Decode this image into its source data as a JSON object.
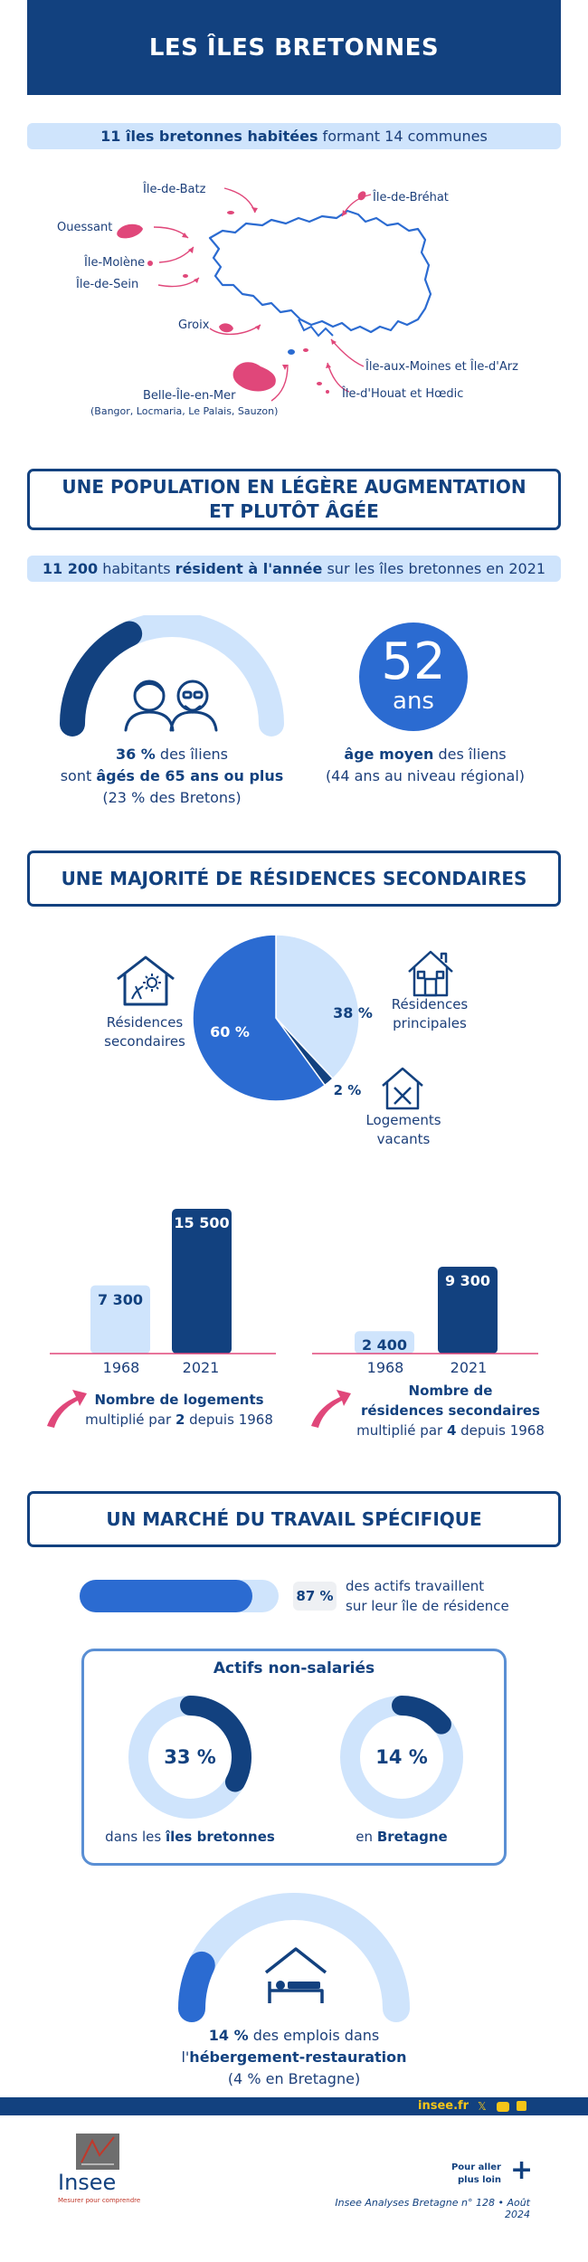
{
  "header": {
    "title": "LES ÎLES BRETONNES"
  },
  "intro": {
    "bold": "11 îles bretonnes habitées",
    "rest": " formant 14 communes"
  },
  "map": {
    "labels": {
      "batz": "Île-de-Batz",
      "brehat": "Île-de-Bréhat",
      "ouessant": "Ouessant",
      "molene": "Île-Molène",
      "sein": "Île-de-Sein",
      "groix": "Groix",
      "moines_arz": "Île-aux-Moines et Île-d'Arz",
      "houat_hoedic": "Île-d'Houat et Hœdic",
      "belle_ile": "Belle-Île-en-Mer",
      "belle_ile_sub": "(Bangor, Locmaria, Le Palais, Sauzon)"
    },
    "island_color": "#e0477a",
    "coast_color": "#2b6bd1"
  },
  "population": {
    "title_line1": "UNE POPULATION EN LÉGÈRE AUGMENTATION",
    "title_line2": "ET PLUTÔT ÂGÉE",
    "pill_bold1": "11 200",
    "pill_text1": " habitants ",
    "pill_bold2": "résident à l'année",
    "pill_text2": " sur les îles bretonnes en 2021",
    "seniors": {
      "share_pct": 36,
      "line1_bold": "36 %",
      "line1_rest": " des îliens",
      "line2_pre": "sont ",
      "line2_bold": "âgés de 65 ans ou plus",
      "line3": "(23 % des Bretons)"
    },
    "age": {
      "value": "52",
      "unit": "ans",
      "line1_bold": "âge moyen",
      "line1_rest": " des îliens",
      "line2": "(44 ans au niveau régional)"
    }
  },
  "housing": {
    "title": "UNE MAJORITÉ DE RÉSIDENCES SECONDAIRES",
    "pie": [
      {
        "name": "Résidences principales",
        "value": 38,
        "label": "38 %",
        "color": "#cfe4fc"
      },
      {
        "name": "Logements vacants",
        "value": 2,
        "label": "2 %",
        "color": "#12417f"
      },
      {
        "name": "Résidences secondaires",
        "value": 60,
        "label": "60 %",
        "color": "#2b6bd1"
      }
    ],
    "legend": {
      "secondaires_l1": "Résidences",
      "secondaires_l2": "secondaires",
      "principales_l1": "Résidences",
      "principales_l2": "principales",
      "vacants_l1": "Logements",
      "vacants_l2": "vacants"
    }
  },
  "chart_data": [
    {
      "type": "bar",
      "categories": [
        "1968",
        "2021"
      ],
      "values": [
        7300,
        15500
      ],
      "value_labels": [
        "7 300",
        "15 500"
      ],
      "colors": [
        "#cfe4fc",
        "#12417f"
      ],
      "caption_bold": "Nombre de logements",
      "caption_line2_pre": "multiplié par ",
      "caption_line2_bold": "2",
      "caption_line2_post": " depuis 1968"
    },
    {
      "type": "bar",
      "categories": [
        "1968",
        "2021"
      ],
      "values": [
        2400,
        9300
      ],
      "value_labels": [
        "2 400",
        "9 300"
      ],
      "colors": [
        "#cfe4fc",
        "#12417f"
      ],
      "caption_bold1": "Nombre de",
      "caption_bold2": "résidences secondaires",
      "caption_line3_pre": "multiplié par ",
      "caption_line3_bold": "4",
      "caption_line3_post": " depuis 1968"
    }
  ],
  "work": {
    "title": "UN MARCHÉ DU TRAVAIL SPÉCIFIQUE",
    "local_share_pct": 87,
    "local_label": "87 %",
    "local_text1": "des actifs travaillent",
    "local_text2": "sur leur île de résidence",
    "box_title": "Actifs non-salariés",
    "islands": {
      "value": 33,
      "label": "33 %",
      "pre": "dans les ",
      "bold": "îles bretonnes"
    },
    "bretagne": {
      "value": 14,
      "label": "14 %",
      "pre": "en ",
      "bold": "Bretagne"
    },
    "tourism": {
      "share_pct": 14,
      "line1_bold": "14 %",
      "line1_rest": " des emplois dans",
      "line2_pre": "l'",
      "line2_bold": "hébergement-restauration",
      "line3": "(4 % en Bretagne)"
    }
  },
  "footer": {
    "site": "insee.fr",
    "logo": "Insee",
    "logo_tagline": "Mesurer pour comprendre",
    "more_l1": "Pour aller",
    "more_l2": "plus loin",
    "publication": "Insee Analyses Bretagne n° 128 • Août 2024"
  },
  "colors": {
    "navy": "#12417f",
    "blue": "#2b6bd1",
    "light": "#cfe4fc",
    "pink": "#e0477a"
  }
}
